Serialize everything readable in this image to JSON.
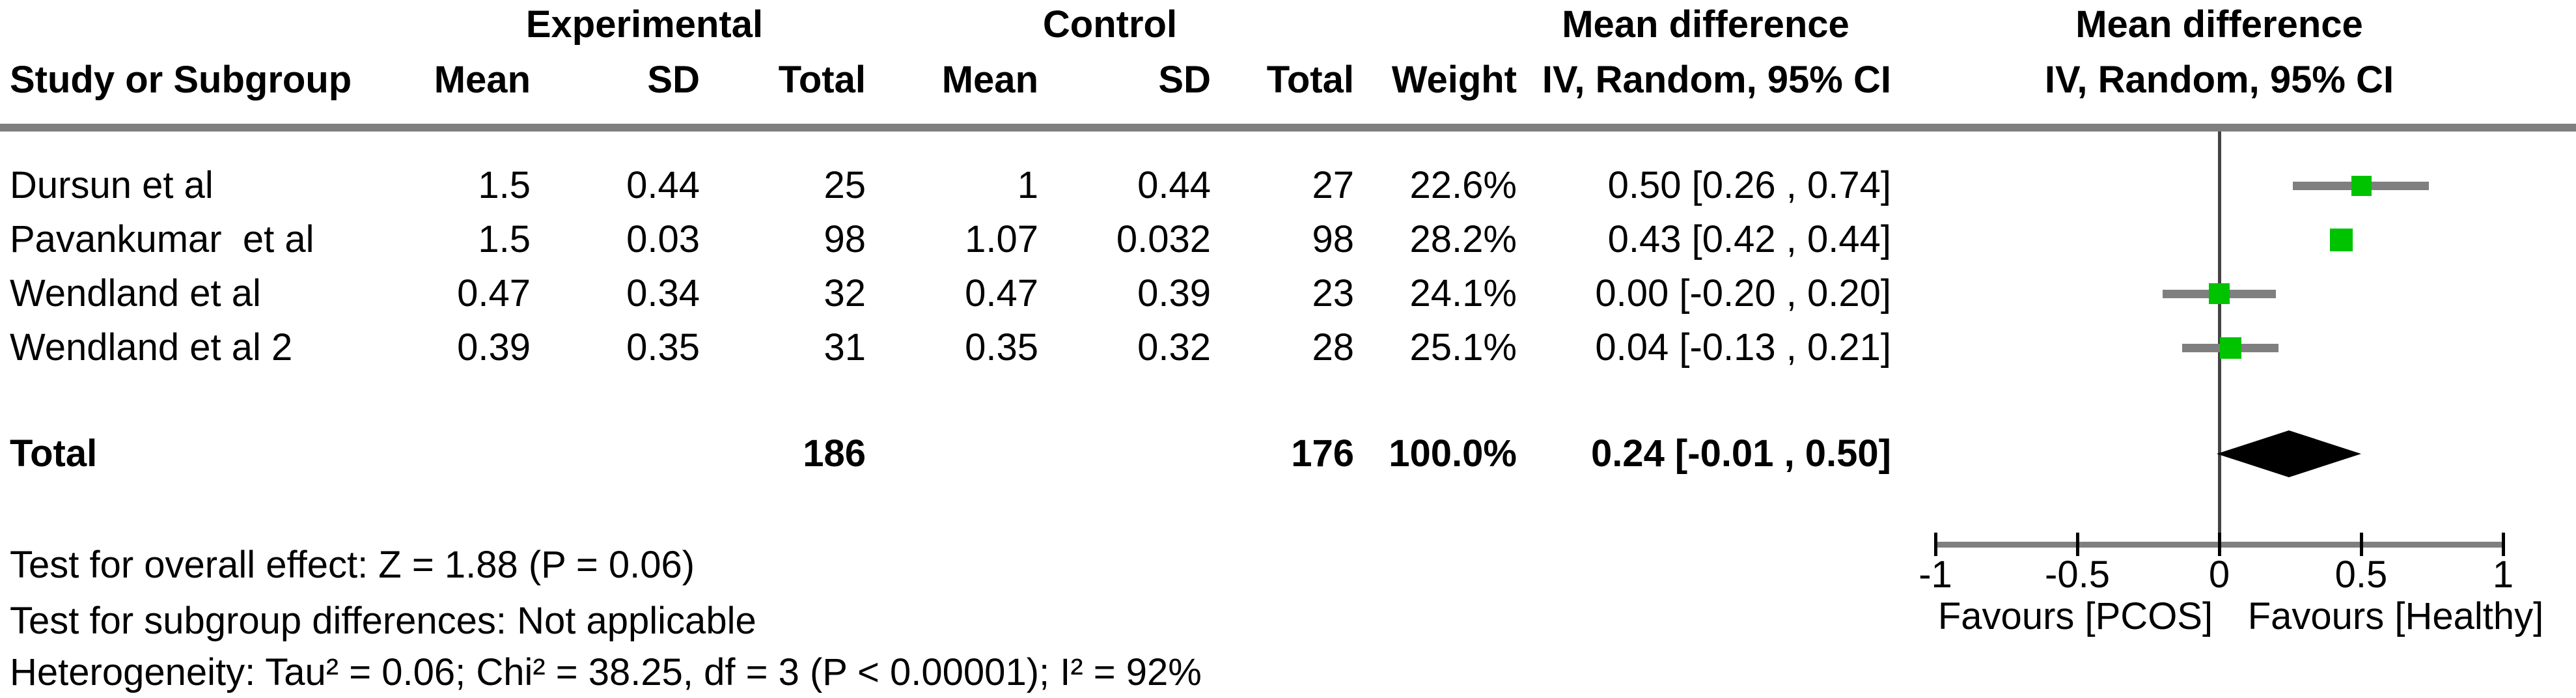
{
  "header": {
    "study_col": "Study or Subgroup",
    "group_experimental": "Experimental",
    "group_control": "Control",
    "mean_exp": "Mean",
    "sd_exp": "SD",
    "total_exp": "Total",
    "mean_ctl": "Mean",
    "sd_ctl": "SD",
    "total_ctl": "Total",
    "weight": "Weight",
    "md_table": "Mean difference",
    "ci_table": "IV, Random, 95% CI",
    "md_plot": "Mean difference",
    "ci_plot": "IV, Random, 95% CI"
  },
  "footer": {
    "line1": "Test for overall effect: Z = 1.88 (P = 0.06)",
    "line2": "Test for subgroup differences: Not applicable",
    "line3": "Heterogeneity: Tau² = 0.06; Chi² = 38.25, df = 3 (P < 0.00001); I² = 92%"
  },
  "colors": {
    "marker_green": "#00c300",
    "gray_line": "#7f7f7f",
    "zero_line": "#444444",
    "diamond_black": "#000000"
  },
  "chart_data": {
    "type": "forest",
    "title": "",
    "effect_label": "Mean difference IV, Random, 95% CI",
    "xlim": [
      -1,
      1
    ],
    "x_ticks": [
      {
        "value": -1,
        "label": "-1"
      },
      {
        "value": -0.5,
        "label": "-0.5"
      },
      {
        "value": 0,
        "label": "0"
      },
      {
        "value": 0.5,
        "label": "0.5"
      },
      {
        "value": 1,
        "label": "1"
      }
    ],
    "favours_left": "Favours [PCOS]",
    "favours_right": "Favours [Healthy]",
    "studies": [
      {
        "name": "Dursun et al",
        "exp_mean": "1.5",
        "exp_sd": "0.44",
        "exp_total": "25",
        "ctl_mean": "1",
        "ctl_sd": "0.44",
        "ctl_total": "27",
        "weight_label": "22.6%",
        "weight_pct": 22.6,
        "estimate": 0.5,
        "ci_low": 0.26,
        "ci_high": 0.74,
        "ci_label": "0.50 [0.26 , 0.74]"
      },
      {
        "name": "Pavankumar  et al",
        "exp_mean": "1.5",
        "exp_sd": "0.03",
        "exp_total": "98",
        "ctl_mean": "1.07",
        "ctl_sd": "0.032",
        "ctl_total": "98",
        "weight_label": "28.2%",
        "weight_pct": 28.2,
        "estimate": 0.43,
        "ci_low": 0.42,
        "ci_high": 0.44,
        "ci_label": "0.43 [0.42 , 0.44]"
      },
      {
        "name": "Wendland et al",
        "exp_mean": "0.47",
        "exp_sd": "0.34",
        "exp_total": "32",
        "ctl_mean": "0.47",
        "ctl_sd": "0.39",
        "ctl_total": "23",
        "weight_label": "24.1%",
        "weight_pct": 24.1,
        "estimate": 0.0,
        "ci_low": -0.2,
        "ci_high": 0.2,
        "ci_label": "0.00 [-0.20 , 0.20]"
      },
      {
        "name": "Wendland et al 2",
        "exp_mean": "0.39",
        "exp_sd": "0.35",
        "exp_total": "31",
        "ctl_mean": "0.35",
        "ctl_sd": "0.32",
        "ctl_total": "28",
        "weight_label": "25.1%",
        "weight_pct": 25.1,
        "estimate": 0.04,
        "ci_low": -0.13,
        "ci_high": 0.21,
        "ci_label": "0.04 [-0.13 , 0.21]"
      }
    ],
    "total": {
      "label": "Total",
      "exp_total": "186",
      "ctl_total": "176",
      "weight_label": "100.0%",
      "estimate": 0.24,
      "ci_low": -0.01,
      "ci_high": 0.5,
      "ci_label": "0.24 [-0.01 , 0.50]"
    }
  }
}
